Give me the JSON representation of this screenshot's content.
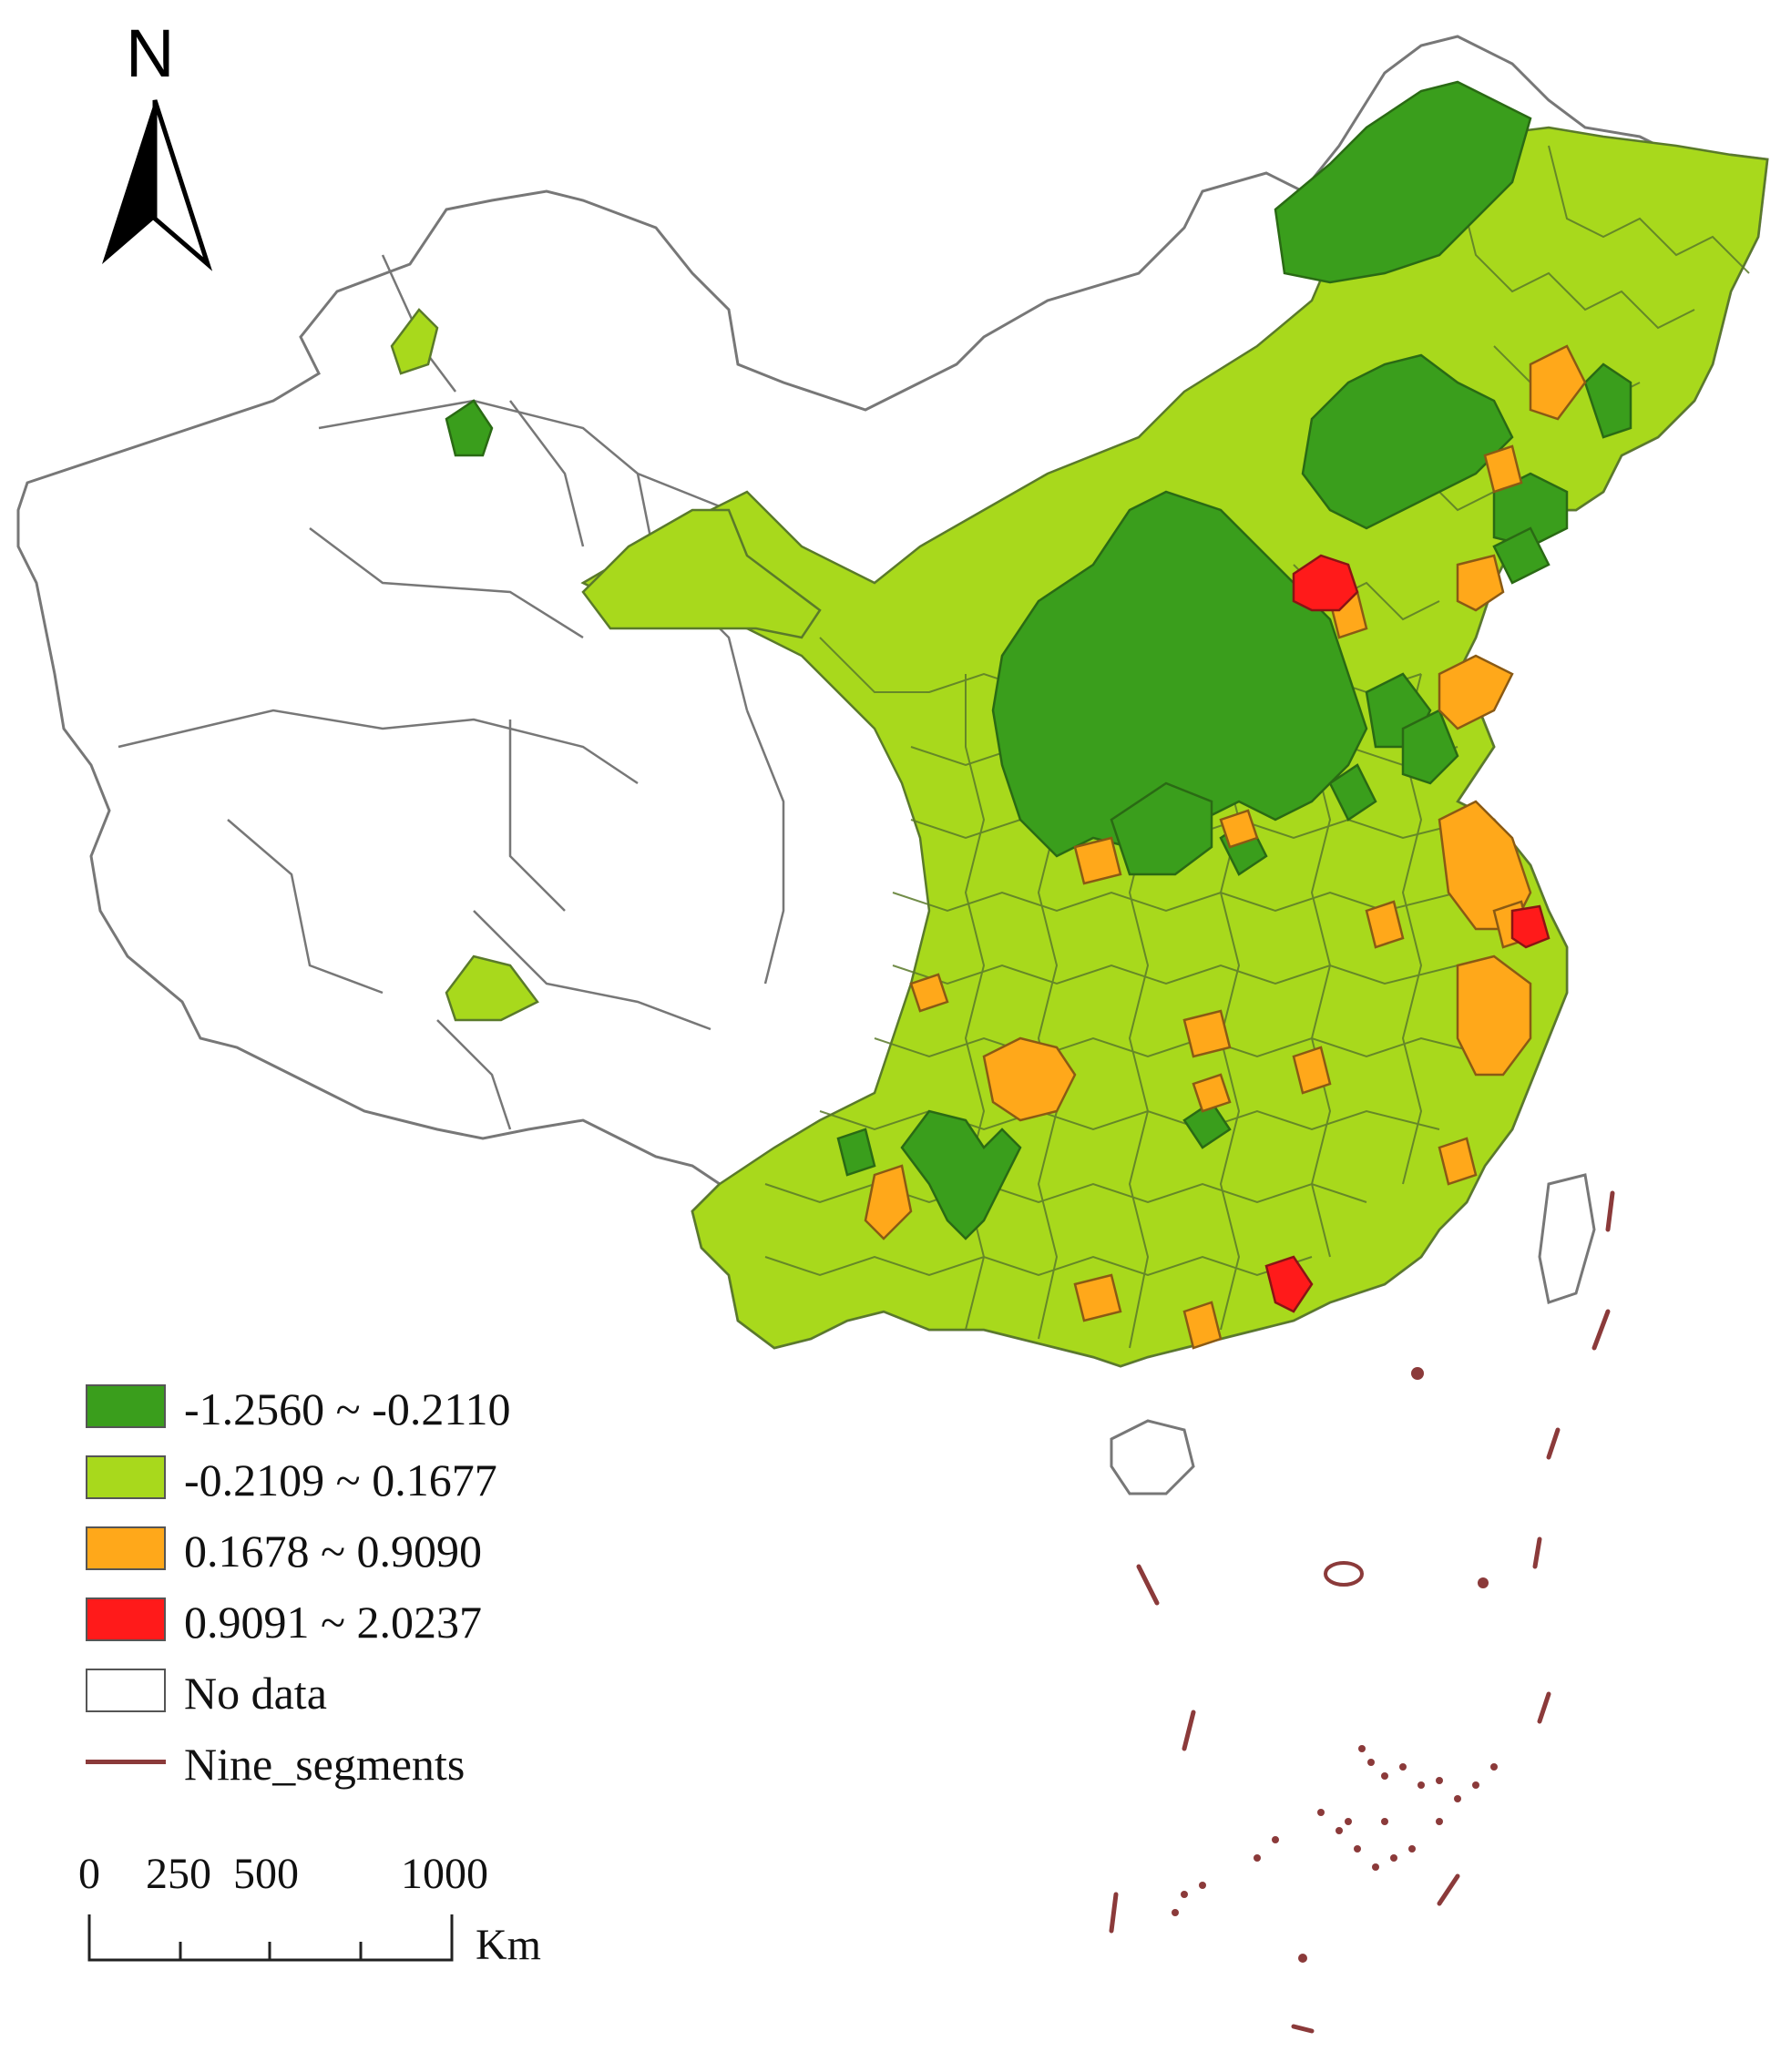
{
  "north_arrow": {
    "label": "N"
  },
  "colors": {
    "class1": "#3a9e1c",
    "class2": "#a8d91c",
    "class3": "#ffa81a",
    "class4": "#ff1a1a",
    "nodata": "#ffffff",
    "boundary": "#777777",
    "nine_segments": "#8b3a3a"
  },
  "legend": {
    "items": [
      {
        "label": "-1.2560 ~ -0.2110",
        "color": "#3a9e1c",
        "kind": "fill"
      },
      {
        "label": "-0.2109 ~ 0.1677",
        "color": "#a8d91c",
        "kind": "fill"
      },
      {
        "label": "0.1678 ~ 0.9090",
        "color": "#ffa81a",
        "kind": "fill"
      },
      {
        "label": "0.9091 ~ 2.0237",
        "color": "#ff1a1a",
        "kind": "fill"
      },
      {
        "label": "No data",
        "color": "#ffffff",
        "kind": "fill"
      },
      {
        "label": "Nine_segments",
        "color": "#8b3a3a",
        "kind": "line"
      }
    ]
  },
  "scale_bar": {
    "ticks": [
      "0",
      "250",
      "500",
      "1000"
    ],
    "unit": "Km"
  }
}
